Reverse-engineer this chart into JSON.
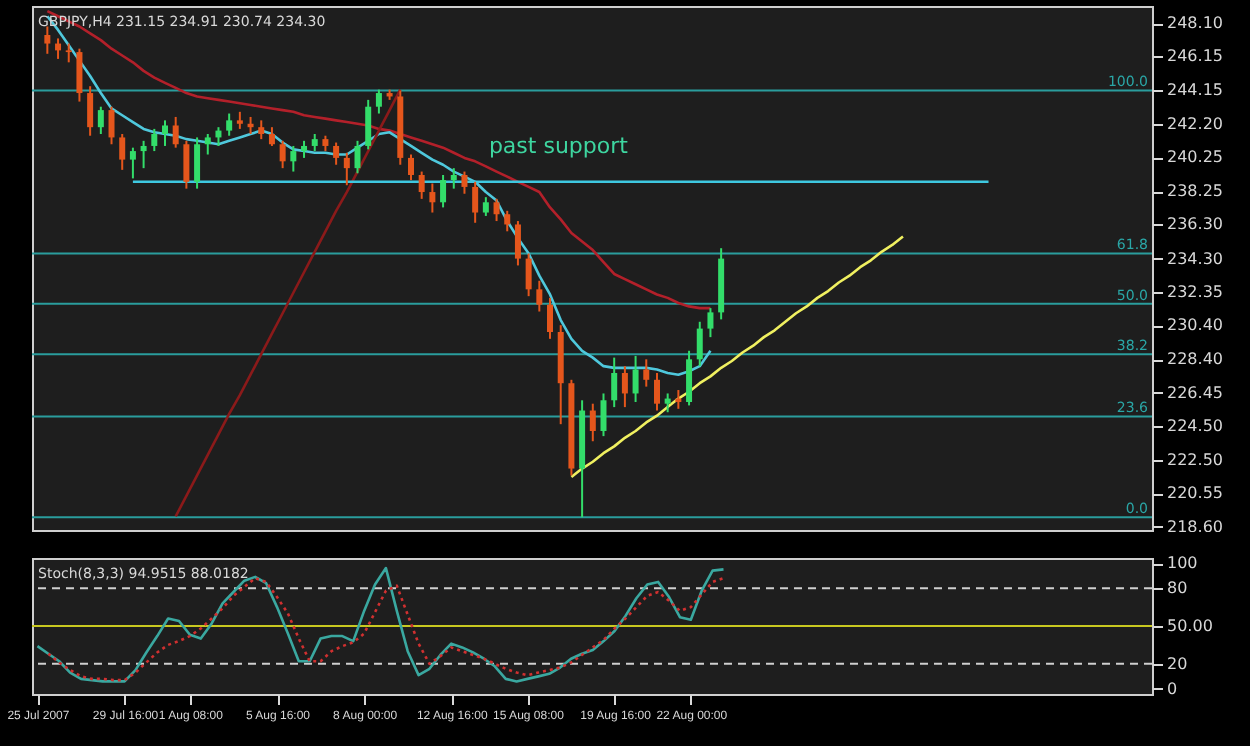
{
  "chart_data": [
    {
      "type": "candlestick",
      "annotations": [
        "GBPJPY,H4 231.15 234.91 230.74 234.30",
        "past support",
        {
          "text": "100.0",
          "y": 244.15
        },
        {
          "text": "61.8",
          "y": 234.6
        },
        {
          "text": "50.0",
          "y": 231.65
        },
        {
          "text": "38.2",
          "y": 228.7
        },
        {
          "text": "23.6",
          "y": 225.05
        },
        {
          "text": "0.0",
          "y": 219.15
        }
      ],
      "categories": [
        null,
        null,
        null,
        null,
        null,
        null,
        null,
        null,
        null,
        null,
        null,
        null,
        null,
        null,
        null,
        null,
        null,
        null,
        null,
        null,
        null,
        null,
        null,
        null,
        null,
        null,
        null,
        null,
        null,
        null,
        null,
        null,
        null,
        null,
        null,
        null,
        null,
        null,
        null,
        null,
        null,
        null,
        null,
        null,
        null,
        null,
        null,
        null,
        null,
        null,
        null,
        null,
        null,
        null,
        null,
        null,
        null,
        null,
        null,
        null,
        null,
        null,
        null,
        null,
        null,
        null,
        null,
        null,
        null,
        null,
        null,
        null,
        null,
        null,
        null,
        null,
        null,
        null,
        null,
        null,
        null,
        null,
        null,
        null,
        null,
        null,
        null,
        null,
        null
      ],
      "ohlc": [
        [
          247.4,
          247.9,
          246.3,
          246.9
        ],
        [
          246.9,
          247.2,
          246.0,
          246.5
        ],
        [
          246.5,
          246.9,
          245.8,
          246.4
        ],
        [
          246.4,
          246.6,
          243.5,
          244.0
        ],
        [
          244.0,
          244.4,
          241.5,
          242.0
        ],
        [
          242.0,
          243.2,
          241.6,
          243.0
        ],
        [
          243.0,
          243.2,
          241.0,
          241.4
        ],
        [
          241.4,
          241.6,
          239.5,
          240.1
        ],
        [
          240.1,
          240.8,
          239.0,
          240.6
        ],
        [
          240.6,
          241.2,
          239.6,
          240.9
        ],
        [
          240.9,
          241.9,
          240.6,
          241.6
        ],
        [
          241.6,
          242.4,
          240.9,
          242.1
        ],
        [
          242.1,
          242.6,
          240.8,
          241.0
        ],
        [
          241.0,
          241.2,
          238.4,
          238.8
        ],
        [
          238.8,
          241.4,
          238.4,
          241.0
        ],
        [
          241.0,
          241.6,
          240.4,
          241.4
        ],
        [
          241.4,
          242.0,
          240.9,
          241.8
        ],
        [
          241.8,
          242.8,
          241.5,
          242.4
        ],
        [
          242.4,
          242.9,
          241.9,
          242.2
        ],
        [
          242.2,
          242.6,
          241.6,
          242.0
        ],
        [
          242.0,
          242.4,
          241.3,
          241.6
        ],
        [
          241.6,
          242.0,
          240.9,
          241.0
        ],
        [
          241.0,
          241.2,
          239.6,
          240.0
        ],
        [
          240.0,
          240.9,
          239.4,
          240.6
        ],
        [
          240.6,
          241.2,
          240.2,
          240.9
        ],
        [
          240.9,
          241.6,
          240.6,
          241.3
        ],
        [
          241.3,
          241.5,
          240.6,
          240.9
        ],
        [
          240.9,
          241.1,
          239.8,
          240.2
        ],
        [
          240.2,
          240.5,
          238.6,
          239.6
        ],
        [
          239.6,
          241.2,
          239.3,
          240.9
        ],
        [
          240.9,
          243.6,
          240.7,
          243.2
        ],
        [
          243.2,
          244.2,
          242.8,
          244.0
        ],
        [
          244.0,
          244.2,
          243.6,
          243.8
        ],
        [
          243.8,
          244.15,
          239.8,
          240.2
        ],
        [
          240.2,
          240.4,
          238.9,
          239.2
        ],
        [
          239.2,
          239.4,
          237.8,
          238.2
        ],
        [
          238.2,
          238.7,
          237.0,
          237.6
        ],
        [
          237.6,
          239.2,
          237.3,
          238.9
        ],
        [
          238.9,
          239.6,
          238.4,
          239.2
        ],
        [
          239.2,
          239.4,
          238.1,
          238.5
        ],
        [
          238.5,
          238.8,
          236.4,
          237.0
        ],
        [
          237.0,
          237.9,
          236.8,
          237.6
        ],
        [
          237.6,
          237.8,
          236.5,
          236.9
        ],
        [
          236.9,
          237.1,
          235.9,
          236.3
        ],
        [
          236.3,
          236.5,
          233.9,
          234.3
        ],
        [
          234.3,
          234.6,
          232.1,
          232.5
        ],
        [
          232.5,
          233.0,
          231.2,
          231.6
        ],
        [
          231.6,
          232.0,
          229.6,
          230.0
        ],
        [
          230.0,
          230.4,
          224.6,
          227.0
        ],
        [
          227.0,
          227.2,
          221.6,
          222.0
        ],
        [
          222.0,
          226.0,
          219.15,
          225.4
        ],
        [
          225.4,
          225.8,
          223.6,
          224.2
        ],
        [
          224.2,
          226.4,
          223.9,
          226.0
        ],
        [
          226.0,
          228.5,
          225.6,
          227.6
        ],
        [
          227.6,
          228.0,
          225.6,
          226.4
        ],
        [
          226.4,
          228.6,
          225.9,
          227.8
        ],
        [
          227.8,
          228.4,
          226.8,
          227.2
        ],
        [
          227.2,
          227.6,
          225.4,
          225.8
        ],
        [
          225.8,
          226.4,
          225.3,
          226.1
        ],
        [
          226.1,
          226.6,
          225.5,
          225.9
        ],
        [
          225.9,
          228.9,
          225.7,
          228.4
        ],
        [
          228.4,
          230.6,
          228.0,
          230.2
        ],
        [
          230.2,
          231.4,
          229.7,
          231.15
        ],
        [
          231.15,
          234.91,
          230.74,
          234.3
        ],
        null,
        null,
        null,
        null,
        null,
        null,
        null,
        null,
        null,
        null,
        null,
        null,
        null,
        null,
        null,
        null,
        null,
        null,
        null,
        null,
        null,
        null,
        null,
        null,
        null
      ],
      "colors": [
        "#e5561c",
        "#e5561c",
        "#e5561c",
        "#e5561c",
        "#e5561c",
        "#33dd6a",
        "#e5561c",
        "#e5561c",
        "#33dd6a",
        "#33dd6a",
        "#33dd6a",
        "#33dd6a",
        "#e5561c",
        "#e5561c",
        "#33dd6a",
        "#33dd6a",
        "#33dd6a",
        "#33dd6a",
        "#e5561c",
        "#e5561c",
        "#e5561c",
        "#e5561c",
        "#e5561c",
        "#33dd6a",
        "#33dd6a",
        "#33dd6a",
        "#e5561c",
        "#e5561c",
        "#e5561c",
        "#33dd6a",
        "#33dd6a",
        "#33dd6a",
        "#e5561c",
        "#e5561c",
        "#e5561c",
        "#e5561c",
        "#e5561c",
        "#33dd6a",
        "#33dd6a",
        "#e5561c",
        "#e5561c",
        "#33dd6a",
        "#e5561c",
        "#e5561c",
        "#e5561c",
        "#e5561c",
        "#e5561c",
        "#e5561c",
        "#e5561c",
        "#e5561c",
        "#33dd6a",
        "#e5561c",
        "#33dd6a",
        "#33dd6a",
        "#e5561c",
        "#33dd6a",
        "#e5561c",
        "#e5561c",
        "#33dd6a",
        "#e5561c",
        "#33dd6a",
        "#33dd6a",
        "#33dd6a",
        "#33dd6a",
        null,
        null,
        null,
        null,
        null,
        null,
        null,
        null,
        null,
        null,
        null,
        null,
        null,
        null,
        null,
        null,
        null,
        null,
        null,
        null,
        null,
        null,
        null,
        null,
        null
      ],
      "series": [
        {
          "type": "line",
          "color": "#b3202a",
          "values": [
            248.8,
            248.5,
            248.2,
            247.9,
            247.5,
            247.1,
            246.6,
            246.2,
            245.8,
            245.3,
            244.9,
            244.6,
            244.3,
            244.0,
            243.8,
            243.7,
            243.6,
            243.5,
            243.4,
            243.3,
            243.2,
            243.1,
            243.0,
            242.9,
            242.7,
            242.6,
            242.5,
            242.4,
            242.3,
            242.2,
            242.1,
            241.9,
            241.8,
            241.6,
            241.4,
            241.2,
            241.0,
            240.8,
            240.5,
            240.2,
            240.0,
            239.7,
            239.4,
            239.1,
            238.8,
            238.5,
            238.2,
            237.3,
            236.6,
            235.8,
            235.3,
            234.8,
            234.1,
            233.4,
            233.1,
            232.8,
            232.5,
            232.2,
            232.0,
            231.7,
            231.5,
            231.4,
            231.4,
            null,
            null,
            null,
            null,
            null,
            null,
            null,
            null,
            null,
            null,
            null,
            null,
            null,
            null,
            null,
            null,
            null,
            null,
            null,
            null,
            null,
            null,
            null,
            null,
            null,
            null
          ]
        },
        {
          "type": "line",
          "color": "#4fc8dc",
          "values": [
            248.5,
            247.7,
            246.8,
            245.9,
            245.0,
            244.0,
            243.1,
            242.7,
            242.3,
            241.9,
            241.7,
            241.6,
            241.5,
            241.3,
            241.2,
            241.1,
            241.0,
            241.2,
            241.4,
            241.6,
            241.8,
            241.6,
            241.1,
            240.7,
            240.6,
            240.5,
            240.5,
            240.4,
            240.4,
            240.8,
            241.2,
            241.6,
            241.7,
            241.3,
            240.9,
            240.5,
            240.1,
            239.8,
            239.4,
            239.1,
            238.8,
            238.2,
            237.7,
            236.5,
            235.5,
            234.6,
            233.3,
            232.2,
            230.7,
            229.6,
            228.9,
            228.5,
            228.0,
            227.9,
            227.9,
            227.9,
            227.9,
            227.8,
            227.6,
            227.5,
            227.7,
            228.0,
            228.9,
            null,
            null,
            null,
            null,
            null,
            null,
            null,
            null,
            null,
            null,
            null,
            null,
            null,
            null,
            null,
            null,
            null,
            null,
            null,
            null,
            null,
            null,
            null,
            null,
            null,
            null
          ]
        },
        {
          "type": "line",
          "color": "#8b1a1a",
          "values": [
            null,
            null,
            null,
            null,
            null,
            null,
            null,
            null,
            null,
            null,
            null,
            null,
            219.2,
            220.4,
            221.6,
            222.8,
            224.0,
            225.2,
            226.3,
            227.5,
            228.7,
            229.9,
            231.1,
            232.3,
            233.5,
            234.7,
            235.9,
            237.1,
            238.2,
            239.4,
            240.6,
            241.8,
            243.0,
            244.2,
            null,
            null,
            null,
            null,
            null,
            null,
            null,
            null,
            null,
            null,
            null,
            null,
            null,
            null,
            null,
            null,
            null,
            null,
            null,
            null,
            null,
            null,
            null,
            null,
            null,
            null,
            null,
            null,
            null,
            null,
            null,
            null,
            null,
            null,
            null,
            null,
            null,
            null,
            null,
            null,
            null,
            null,
            null,
            null,
            null,
            null,
            null,
            null,
            null,
            null,
            null,
            null,
            null,
            null,
            null
          ]
        },
        {
          "type": "line",
          "color": "#f0f060",
          "values": [
            null,
            null,
            null,
            null,
            null,
            null,
            null,
            null,
            null,
            null,
            null,
            null,
            null,
            null,
            null,
            null,
            null,
            null,
            null,
            null,
            null,
            null,
            null,
            null,
            null,
            null,
            null,
            null,
            null,
            null,
            null,
            null,
            null,
            null,
            null,
            null,
            null,
            null,
            null,
            null,
            null,
            null,
            null,
            null,
            null,
            null,
            null,
            null,
            null,
            221.5,
            222.0,
            222.4,
            222.9,
            223.3,
            223.8,
            224.2,
            224.7,
            225.1,
            225.6,
            226.1,
            226.5,
            227.0,
            227.4,
            227.9,
            228.3,
            228.8,
            229.2,
            229.7,
            230.1,
            230.6,
            231.1,
            231.5,
            232.0,
            232.4,
            232.9,
            233.3,
            233.8,
            234.2,
            234.7,
            235.1,
            235.6,
            null,
            null,
            null,
            null,
            null,
            null,
            null,
            null
          ]
        },
        {
          "type": "line",
          "color": "#3ec8e0",
          "values": [
            null,
            null,
            null,
            null,
            null,
            null,
            null,
            null,
            238.8,
            238.8,
            238.8,
            238.8,
            238.8,
            238.8,
            238.8,
            238.8,
            238.8,
            238.8,
            238.8,
            238.8,
            238.8,
            238.8,
            238.8,
            238.8,
            238.8,
            238.8,
            238.8,
            238.8,
            238.8,
            238.8,
            238.8,
            238.8,
            238.8,
            238.8,
            238.8,
            238.8,
            238.8,
            238.8,
            238.8,
            238.8,
            238.8,
            238.8,
            238.8,
            238.8,
            238.8,
            238.8,
            238.8,
            238.8,
            238.8,
            238.8,
            238.8,
            238.8,
            238.8,
            238.8,
            238.8,
            238.8,
            238.8,
            238.8,
            238.8,
            238.8,
            238.8,
            238.8,
            238.8,
            238.8,
            238.8,
            238.8,
            238.8,
            238.8,
            238.8,
            238.8,
            238.8,
            238.8,
            238.8,
            238.8,
            238.8,
            238.8,
            238.8,
            238.8,
            238.8,
            238.8,
            238.8,
            238.8,
            238.8,
            238.8,
            238.8,
            238.8,
            238.8,
            238.8,
            238.8
          ]
        }
      ],
      "ref_lines": [
        {
          "axis": "y",
          "value": 244.15,
          "color": "#2a9d9d"
        },
        {
          "axis": "y",
          "value": 234.6,
          "color": "#2a9d9d"
        },
        {
          "axis": "y",
          "value": 231.65,
          "color": "#2a9d9d"
        },
        {
          "axis": "y",
          "value": 228.7,
          "color": "#2a9d9d"
        },
        {
          "axis": "y",
          "value": 225.05,
          "color": "#2a9d9d"
        },
        {
          "axis": "y",
          "value": 219.15,
          "color": "#2a9d9d"
        }
      ],
      "ylim": [
        218.4,
        249.1
      ],
      "tick_labels": "y",
      "yticks": [
        {
          "value": 248.1,
          "label": "248.10"
        },
        246.15,
        244.15,
        {
          "value": 242.2,
          "label": "242.20"
        },
        240.25,
        238.25,
        {
          "value": 236.3,
          "label": "236.30"
        },
        {
          "value": 234.3,
          "label": "234.30"
        },
        232.35,
        {
          "value": 230.4,
          "label": "230.40"
        },
        {
          "value": 228.4,
          "label": "228.40"
        },
        226.45,
        {
          "value": 224.5,
          "label": "224.50"
        },
        {
          "value": 222.5,
          "label": "222.50"
        },
        220.55,
        {
          "value": 218.6,
          "label": "218.60"
        }
      ]
    },
    {
      "type": "line",
      "annotations": [
        "Stoch(8,3,3) 94.9515 88.0182"
      ],
      "categories": [
        "25 Jul 2007",
        null,
        null,
        null,
        null,
        null,
        null,
        null,
        "29 Jul 16:00",
        null,
        null,
        null,
        null,
        null,
        "1 Aug 08:00",
        null,
        null,
        null,
        null,
        null,
        null,
        null,
        "5 Aug 16:00",
        null,
        null,
        null,
        null,
        null,
        null,
        null,
        "8 Aug 00:00",
        null,
        null,
        null,
        null,
        null,
        null,
        null,
        "12 Aug 16:00",
        null,
        null,
        null,
        null,
        null,
        null,
        "15 Aug 08:00",
        null,
        null,
        null,
        null,
        null,
        null,
        null,
        "19 Aug 16:00",
        null,
        null,
        null,
        null,
        null,
        null,
        "22 Aug 00:00",
        null,
        null,
        null,
        null,
        null,
        null,
        null,
        null,
        null,
        null,
        null,
        null,
        null,
        null,
        null,
        null,
        null,
        null,
        null,
        null,
        null,
        null,
        null,
        null,
        null,
        null,
        null,
        null
      ],
      "series": [
        {
          "color": "#3aa8a0",
          "values": [
            34,
            28,
            22,
            13,
            8,
            7,
            6,
            6,
            6,
            15,
            29,
            42,
            56,
            54,
            43,
            40,
            52,
            68,
            77,
            86,
            89,
            84,
            65,
            44,
            22,
            22,
            40,
            42,
            42,
            38,
            62,
            83,
            96,
            62,
            30,
            11,
            16,
            27,
            36,
            33,
            29,
            24,
            18,
            8,
            6,
            8,
            10,
            12,
            17,
            24,
            28,
            31,
            38,
            46,
            58,
            72,
            83,
            85,
            73,
            57,
            55,
            78,
            94,
            95,
            null,
            null,
            null,
            null,
            null,
            null,
            null,
            null,
            null,
            null,
            null,
            null,
            null,
            null,
            null,
            null,
            null,
            null,
            null,
            null,
            null,
            null,
            null,
            null,
            null
          ]
        },
        {
          "color": "#d03030",
          "line_style": "dotted",
          "values": [
            null,
            28,
            21,
            15,
            10,
            8,
            8,
            7,
            7,
            13,
            21,
            29,
            35,
            38,
            42,
            48,
            56,
            64,
            74,
            81,
            88,
            85,
            73,
            60,
            40,
            22,
            22,
            30,
            34,
            37,
            44,
            61,
            78,
            82,
            59,
            36,
            20,
            26,
            33,
            30,
            27,
            24,
            20,
            16,
            13,
            11,
            13,
            15,
            17,
            21,
            27,
            33,
            39,
            48,
            56,
            65,
            74,
            77,
            70,
            62,
            65,
            75,
            85,
            88,
            null,
            null,
            null,
            null,
            null,
            null,
            null,
            null,
            null,
            null,
            null,
            null,
            null,
            null,
            null,
            null,
            null,
            null,
            null,
            null,
            null,
            null,
            null,
            null,
            null
          ]
        }
      ],
      "ref_lines": [
        {
          "axis": "y",
          "value": 80,
          "color": "#d0d0d0",
          "line_style": "dashed"
        },
        {
          "axis": "y",
          "value": 50,
          "color": "#c8c820"
        },
        {
          "axis": "y",
          "value": 20,
          "color": "#d0d0d0",
          "line_style": "dashed"
        }
      ],
      "ylim": [
        -4,
        104
      ],
      "yticks": [
        0,
        20,
        {
          "value": 50,
          "label": "50.00"
        },
        80,
        100
      ]
    }
  ]
}
